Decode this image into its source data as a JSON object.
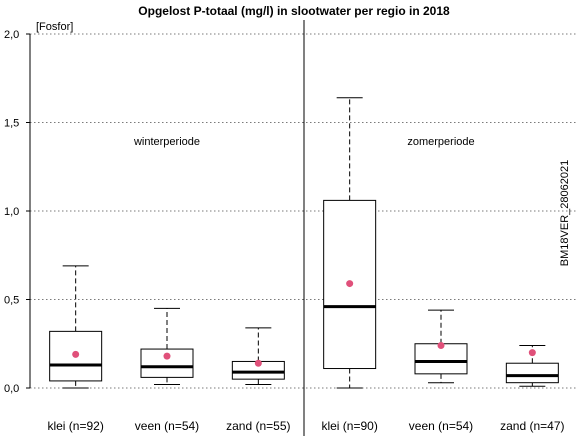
{
  "chart_data": {
    "type": "boxplot",
    "title": "Opgelost P-totaal (mg/l) in slootwater per regio in 2018",
    "ylabel": "[Fosfor]",
    "ylim": [
      0,
      2.0
    ],
    "yticks": [
      {
        "value": 0.0,
        "label": "0,0"
      },
      {
        "value": 0.5,
        "label": "0,5"
      },
      {
        "value": 1.0,
        "label": "1,0"
      },
      {
        "value": 1.5,
        "label": "1,5"
      },
      {
        "value": 2.0,
        "label": "2,0"
      }
    ],
    "grid": "horizontal dotted",
    "annotation_side": "BM18VER_28062021",
    "mean_color": "#e0507a",
    "panels": [
      {
        "label": "winterperiode",
        "boxes": [
          {
            "category": "klei (n=92)",
            "whisker_low": 0.0,
            "q1": 0.04,
            "median": 0.13,
            "q3": 0.32,
            "whisker_high": 0.69,
            "mean": 0.19
          },
          {
            "category": "veen (n=54)",
            "whisker_low": 0.02,
            "q1": 0.06,
            "median": 0.12,
            "q3": 0.22,
            "whisker_high": 0.45,
            "mean": 0.18
          },
          {
            "category": "zand (n=55)",
            "whisker_low": 0.02,
            "q1": 0.05,
            "median": 0.09,
            "q3": 0.15,
            "whisker_high": 0.34,
            "mean": 0.14
          }
        ]
      },
      {
        "label": "zomerperiode",
        "boxes": [
          {
            "category": "klei (n=90)",
            "whisker_low": 0.0,
            "q1": 0.11,
            "median": 0.46,
            "q3": 1.06,
            "whisker_high": 1.64,
            "mean": 0.59
          },
          {
            "category": "veen (n=54)",
            "whisker_low": 0.03,
            "q1": 0.08,
            "median": 0.15,
            "q3": 0.25,
            "whisker_high": 0.44,
            "mean": 0.24
          },
          {
            "category": "zand (n=47)",
            "whisker_low": 0.01,
            "q1": 0.03,
            "median": 0.07,
            "q3": 0.14,
            "whisker_high": 0.24,
            "mean": 0.2
          }
        ]
      }
    ]
  }
}
